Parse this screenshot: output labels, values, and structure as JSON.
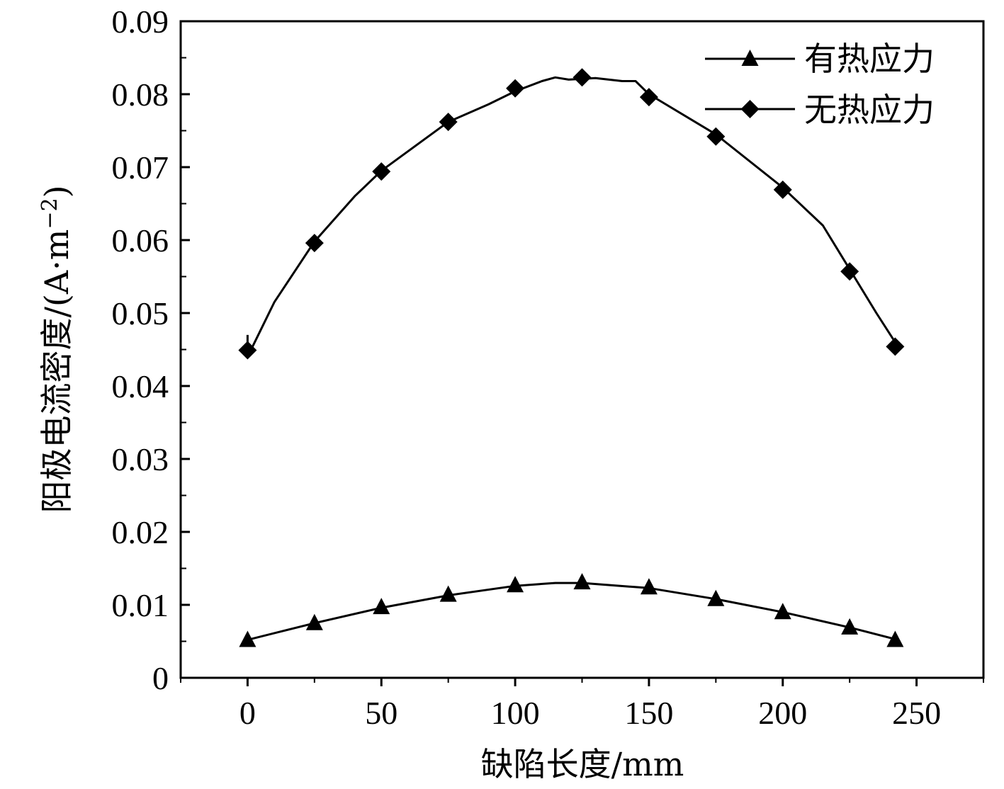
{
  "chart_data": {
    "type": "line",
    "xlabel": "缺陷长度/mm",
    "ylabel": "阳极电流密度/(A·m",
    "ylabel_sup": "−2",
    "ylabel_tail": ")",
    "xlim": [
      -25,
      275
    ],
    "ylim": [
      0,
      0.09
    ],
    "xticks": [
      0,
      50,
      100,
      150,
      200,
      250
    ],
    "yticks": [
      0,
      0.01,
      0.02,
      0.03,
      0.04,
      0.05,
      0.06,
      0.07,
      0.08,
      0.09
    ],
    "xtick_labels": [
      "0",
      "50",
      "100",
      "150",
      "200",
      "250"
    ],
    "ytick_labels": [
      "0",
      "0.01",
      "0.02",
      "0.03",
      "0.04",
      "0.05",
      "0.06",
      "0.07",
      "0.08",
      "0.09"
    ],
    "legend_position": "top-right",
    "grid": false,
    "series": [
      {
        "name": "有热应力",
        "marker": "triangle",
        "color": "#000000",
        "curve": [
          [
            0,
            0.0052
          ],
          [
            25,
            0.0075
          ],
          [
            50,
            0.0096
          ],
          [
            75,
            0.0113
          ],
          [
            100,
            0.0126
          ],
          [
            115,
            0.013
          ],
          [
            125,
            0.013
          ],
          [
            150,
            0.0123
          ],
          [
            175,
            0.0108
          ],
          [
            200,
            0.009
          ],
          [
            225,
            0.0069
          ],
          [
            242,
            0.0053
          ]
        ],
        "markers": [
          [
            0,
            0.0052
          ],
          [
            25,
            0.0075
          ],
          [
            50,
            0.0097
          ],
          [
            75,
            0.0114
          ],
          [
            100,
            0.0127
          ],
          [
            125,
            0.0131
          ],
          [
            150,
            0.0124
          ],
          [
            175,
            0.0108
          ],
          [
            200,
            0.009
          ],
          [
            225,
            0.0069
          ],
          [
            242,
            0.0052
          ]
        ]
      },
      {
        "name": "无热应力",
        "marker": "diamond",
        "color": "#000000",
        "curve": [
          [
            0,
            0.047
          ],
          [
            0,
            0.044
          ],
          [
            10,
            0.0515
          ],
          [
            25,
            0.0598
          ],
          [
            40,
            0.066
          ],
          [
            50,
            0.0695
          ],
          [
            75,
            0.0762
          ],
          [
            90,
            0.0786
          ],
          [
            100,
            0.0804
          ],
          [
            110,
            0.0818
          ],
          [
            115,
            0.0823
          ],
          [
            120,
            0.082
          ],
          [
            130,
            0.0822
          ],
          [
            140,
            0.0818
          ],
          [
            145,
            0.0818
          ],
          [
            150,
            0.08
          ],
          [
            175,
            0.0745
          ],
          [
            200,
            0.0672
          ],
          [
            215,
            0.062
          ],
          [
            225,
            0.056
          ],
          [
            235,
            0.05
          ],
          [
            242,
            0.046
          ]
        ],
        "markers": [
          [
            0,
            0.0449
          ],
          [
            25,
            0.0596
          ],
          [
            50,
            0.0694
          ],
          [
            75,
            0.0762
          ],
          [
            100,
            0.0808
          ],
          [
            125,
            0.0823
          ],
          [
            150,
            0.0796
          ],
          [
            175,
            0.0742
          ],
          [
            200,
            0.0669
          ],
          [
            225,
            0.0557
          ],
          [
            242,
            0.0454
          ]
        ]
      }
    ]
  }
}
